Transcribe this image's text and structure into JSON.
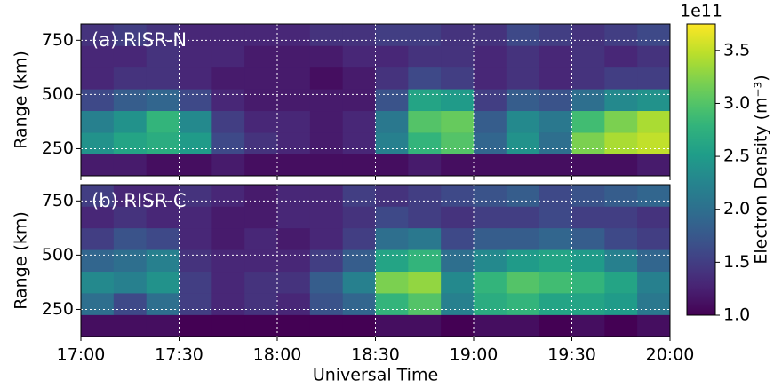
{
  "chart_data": [
    {
      "type": "heatmap",
      "annotation": "(a) RISR-N",
      "ylabel": "Range (km)",
      "x": [
        "17:00",
        "17:10",
        "17:20",
        "17:30",
        "17:40",
        "17:50",
        "18:00",
        "18:10",
        "18:20",
        "18:30",
        "18:40",
        "18:50",
        "19:00",
        "19:10",
        "19:20",
        "19:30",
        "19:40",
        "19:50"
      ],
      "xlim": [
        "17:00",
        "20:00"
      ],
      "xticks": [
        "17:00",
        "17:30",
        "18:00",
        "18:30",
        "19:00",
        "19:30",
        "20:00"
      ],
      "xtick_labels": false,
      "ybins": [
        125,
        225,
        325,
        425,
        525,
        625,
        725,
        825
      ],
      "ylim": [
        125,
        825
      ],
      "yticks": [
        250,
        500,
        750
      ],
      "grid": true,
      "colormap": "viridis",
      "values": [
        [
          1.2,
          1.2,
          1.1,
          1.1,
          1.2,
          1.1,
          1.1,
          1.1,
          1.1,
          1.1,
          1.2,
          1.1,
          1.1,
          1.1,
          1.1,
          1.1,
          1.1,
          1.2
        ],
        [
          2.4,
          2.6,
          2.7,
          2.5,
          1.6,
          1.4,
          1.3,
          1.2,
          1.3,
          2.2,
          2.8,
          3.0,
          1.9,
          2.4,
          2.0,
          3.2,
          3.4,
          3.5
        ],
        [
          2.2,
          2.4,
          2.8,
          2.3,
          1.5,
          1.3,
          1.3,
          1.2,
          1.3,
          2.1,
          3.0,
          3.1,
          1.8,
          2.3,
          2.1,
          2.9,
          3.2,
          3.4
        ],
        [
          1.6,
          1.8,
          1.9,
          1.6,
          1.3,
          1.2,
          1.2,
          1.2,
          1.2,
          1.7,
          2.6,
          2.5,
          1.5,
          1.8,
          1.7,
          2.0,
          2.3,
          2.4
        ],
        [
          1.3,
          1.4,
          1.4,
          1.3,
          1.2,
          1.2,
          1.2,
          1.1,
          1.2,
          1.4,
          1.6,
          1.5,
          1.3,
          1.4,
          1.3,
          1.4,
          1.5,
          1.5
        ],
        [
          1.3,
          1.3,
          1.4,
          1.3,
          1.3,
          1.2,
          1.2,
          1.2,
          1.3,
          1.3,
          1.4,
          1.4,
          1.3,
          1.4,
          1.3,
          1.4,
          1.3,
          1.4
        ],
        [
          1.4,
          1.5,
          1.4,
          1.3,
          1.3,
          1.3,
          1.3,
          1.4,
          1.4,
          1.5,
          1.5,
          1.4,
          1.4,
          1.6,
          1.5,
          1.4,
          1.5,
          1.6
        ]
      ]
    },
    {
      "type": "heatmap",
      "annotation": "(b) RISR-C",
      "ylabel": "Range (km)",
      "xlabel": "Universal Time",
      "x": [
        "17:00",
        "17:10",
        "17:20",
        "17:30",
        "17:40",
        "17:50",
        "18:00",
        "18:10",
        "18:20",
        "18:30",
        "18:40",
        "18:50",
        "19:00",
        "19:10",
        "19:20",
        "19:30",
        "19:40",
        "19:50"
      ],
      "xlim": [
        "17:00",
        "20:00"
      ],
      "xticks": [
        "17:00",
        "17:30",
        "18:00",
        "18:30",
        "19:00",
        "19:30",
        "20:00"
      ],
      "xtick_labels": true,
      "ybins": [
        125,
        225,
        325,
        425,
        525,
        625,
        725,
        825
      ],
      "ylim": [
        125,
        825
      ],
      "yticks": [
        250,
        500,
        750
      ],
      "grid": true,
      "colormap": "viridis",
      "values": [
        [
          1.1,
          1.1,
          1.1,
          1.0,
          1.0,
          1.0,
          1.0,
          1.0,
          1.0,
          1.1,
          1.1,
          1.0,
          1.1,
          1.1,
          1.0,
          1.1,
          1.0,
          1.1
        ],
        [
          2.0,
          1.6,
          2.0,
          1.5,
          1.3,
          1.4,
          1.3,
          1.7,
          1.9,
          2.8,
          3.0,
          2.2,
          2.7,
          2.8,
          2.6,
          2.6,
          2.5,
          2.1
        ],
        [
          2.3,
          2.2,
          2.4,
          1.5,
          1.3,
          1.4,
          1.4,
          1.8,
          2.2,
          3.2,
          3.3,
          2.3,
          2.8,
          3.0,
          2.9,
          2.8,
          2.6,
          2.2
        ],
        [
          1.9,
          2.0,
          2.2,
          1.4,
          1.3,
          1.3,
          1.3,
          1.5,
          1.8,
          2.6,
          2.8,
          2.0,
          2.3,
          2.5,
          2.6,
          2.5,
          2.2,
          1.9
        ],
        [
          1.5,
          1.7,
          1.6,
          1.3,
          1.2,
          1.3,
          1.2,
          1.3,
          1.5,
          2.0,
          2.1,
          1.6,
          1.8,
          1.8,
          1.9,
          1.8,
          1.6,
          1.5
        ],
        [
          1.3,
          1.4,
          1.3,
          1.3,
          1.2,
          1.2,
          1.3,
          1.3,
          1.4,
          1.6,
          1.5,
          1.4,
          1.5,
          1.5,
          1.6,
          1.5,
          1.5,
          1.4
        ],
        [
          1.5,
          1.3,
          1.3,
          1.4,
          1.3,
          1.2,
          1.3,
          1.3,
          1.5,
          1.4,
          1.5,
          1.6,
          1.7,
          1.8,
          1.6,
          1.7,
          1.8,
          1.9
        ]
      ]
    },
    {
      "type": "colorbar",
      "colormap": "viridis",
      "label": "Electron Density (m⁻³)",
      "offset_label": "1e11",
      "lim": [
        1.0,
        3.75
      ],
      "ticks": [
        {
          "value": 1,
          "label": "1.0"
        },
        1.5,
        {
          "value": 2,
          "label": "2.0"
        },
        2.5,
        {
          "value": 3,
          "label": "3.0"
        },
        3.5
      ]
    }
  ]
}
